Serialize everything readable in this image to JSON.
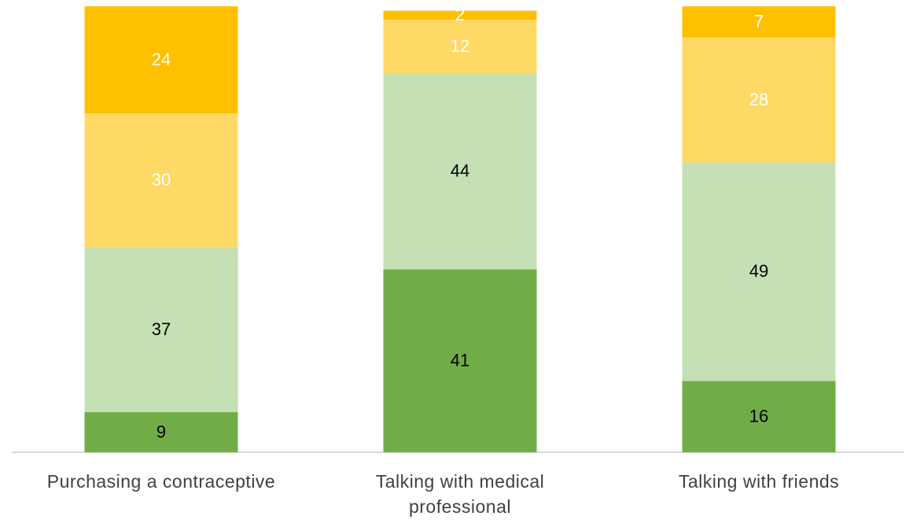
{
  "chart_data": {
    "type": "stacked_bar",
    "categories": [
      "Purchasing a contraceptive",
      "Talking with medical professional",
      "Talking with friends"
    ],
    "series": [
      {
        "color": "#70ad47",
        "label_color": "#000000",
        "values": [
          9,
          41,
          16
        ]
      },
      {
        "color": "#c5e0b4",
        "label_color": "#000000",
        "values": [
          37,
          44,
          49
        ]
      },
      {
        "color": "#ffd966",
        "label_color": "#ffffff",
        "values": [
          30,
          12,
          28
        ]
      },
      {
        "color": "#ffc000",
        "label_color": "#ffffff",
        "values": [
          24,
          2,
          7
        ]
      }
    ],
    "ylim": [
      0,
      100
    ]
  }
}
